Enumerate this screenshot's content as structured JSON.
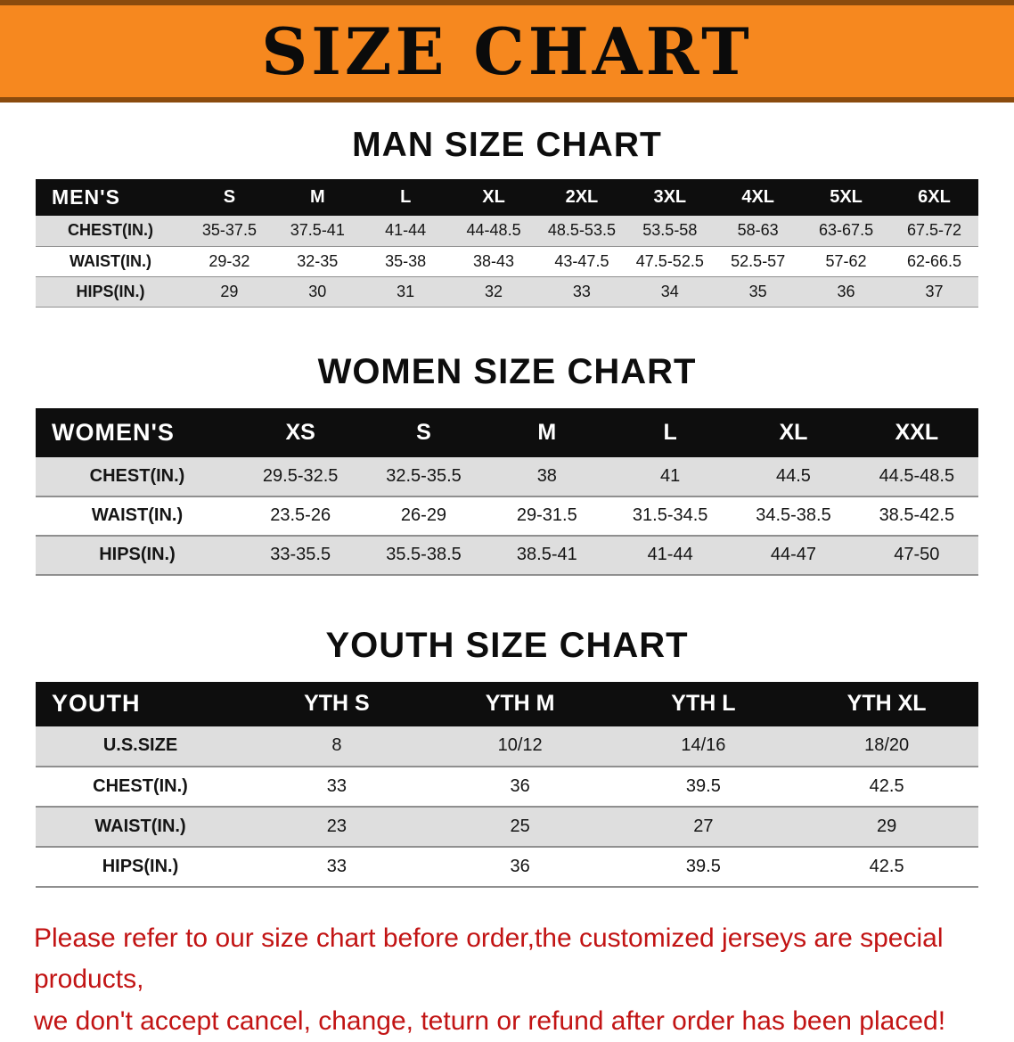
{
  "banner": {
    "title": "SIZE CHART"
  },
  "colors": {
    "banner_bg": "#F6881F",
    "banner_edge": "#8A4B0D",
    "table_header_bg": "#0E0E0E",
    "row_stripe": "#DEDEDE",
    "note_text": "#C21414"
  },
  "chart_data": [
    {
      "type": "table",
      "title": "MAN SIZE CHART",
      "columns": [
        "MEN'S",
        "S",
        "M",
        "L",
        "XL",
        "2XL",
        "3XL",
        "4XL",
        "5XL",
        "6XL"
      ],
      "rows": [
        [
          "CHEST(IN.)",
          "35-37.5",
          "37.5-41",
          "41-44",
          "44-48.5",
          "48.5-53.5",
          "53.5-58",
          "58-63",
          "63-67.5",
          "67.5-72"
        ],
        [
          "WAIST(IN.)",
          "29-32",
          "32-35",
          "35-38",
          "38-43",
          "43-47.5",
          "47.5-52.5",
          "52.5-57",
          "57-62",
          "62-66.5"
        ],
        [
          "HIPS(IN.)",
          "29",
          "30",
          "31",
          "32",
          "33",
          "34",
          "35",
          "36",
          "37"
        ]
      ]
    },
    {
      "type": "table",
      "title": "WOMEN SIZE CHART",
      "columns": [
        "WOMEN'S",
        "XS",
        "S",
        "M",
        "L",
        "XL",
        "XXL"
      ],
      "rows": [
        [
          "CHEST(IN.)",
          "29.5-32.5",
          "32.5-35.5",
          "38",
          "41",
          "44.5",
          "44.5-48.5"
        ],
        [
          "WAIST(IN.)",
          "23.5-26",
          "26-29",
          "29-31.5",
          "31.5-34.5",
          "34.5-38.5",
          "38.5-42.5"
        ],
        [
          "HIPS(IN.)",
          "33-35.5",
          "35.5-38.5",
          "38.5-41",
          "41-44",
          "44-47",
          "47-50"
        ]
      ]
    },
    {
      "type": "table",
      "title": "YOUTH SIZE CHART",
      "columns": [
        "YOUTH",
        "YTH S",
        "YTH M",
        "YTH L",
        "YTH XL"
      ],
      "rows": [
        [
          "U.S.SIZE",
          "8",
          "10/12",
          "14/16",
          "18/20"
        ],
        [
          "CHEST(IN.)",
          "33",
          "36",
          "39.5",
          "42.5"
        ],
        [
          "WAIST(IN.)",
          "23",
          "25",
          "27",
          "29"
        ],
        [
          "HIPS(IN.)",
          "33",
          "36",
          "39.5",
          "42.5"
        ]
      ]
    }
  ],
  "note": {
    "line1": "Please refer to our size chart before order,the customized jerseys are special products,",
    "line2": "we don't accept cancel, change, teturn or refund after order has been placed!"
  }
}
